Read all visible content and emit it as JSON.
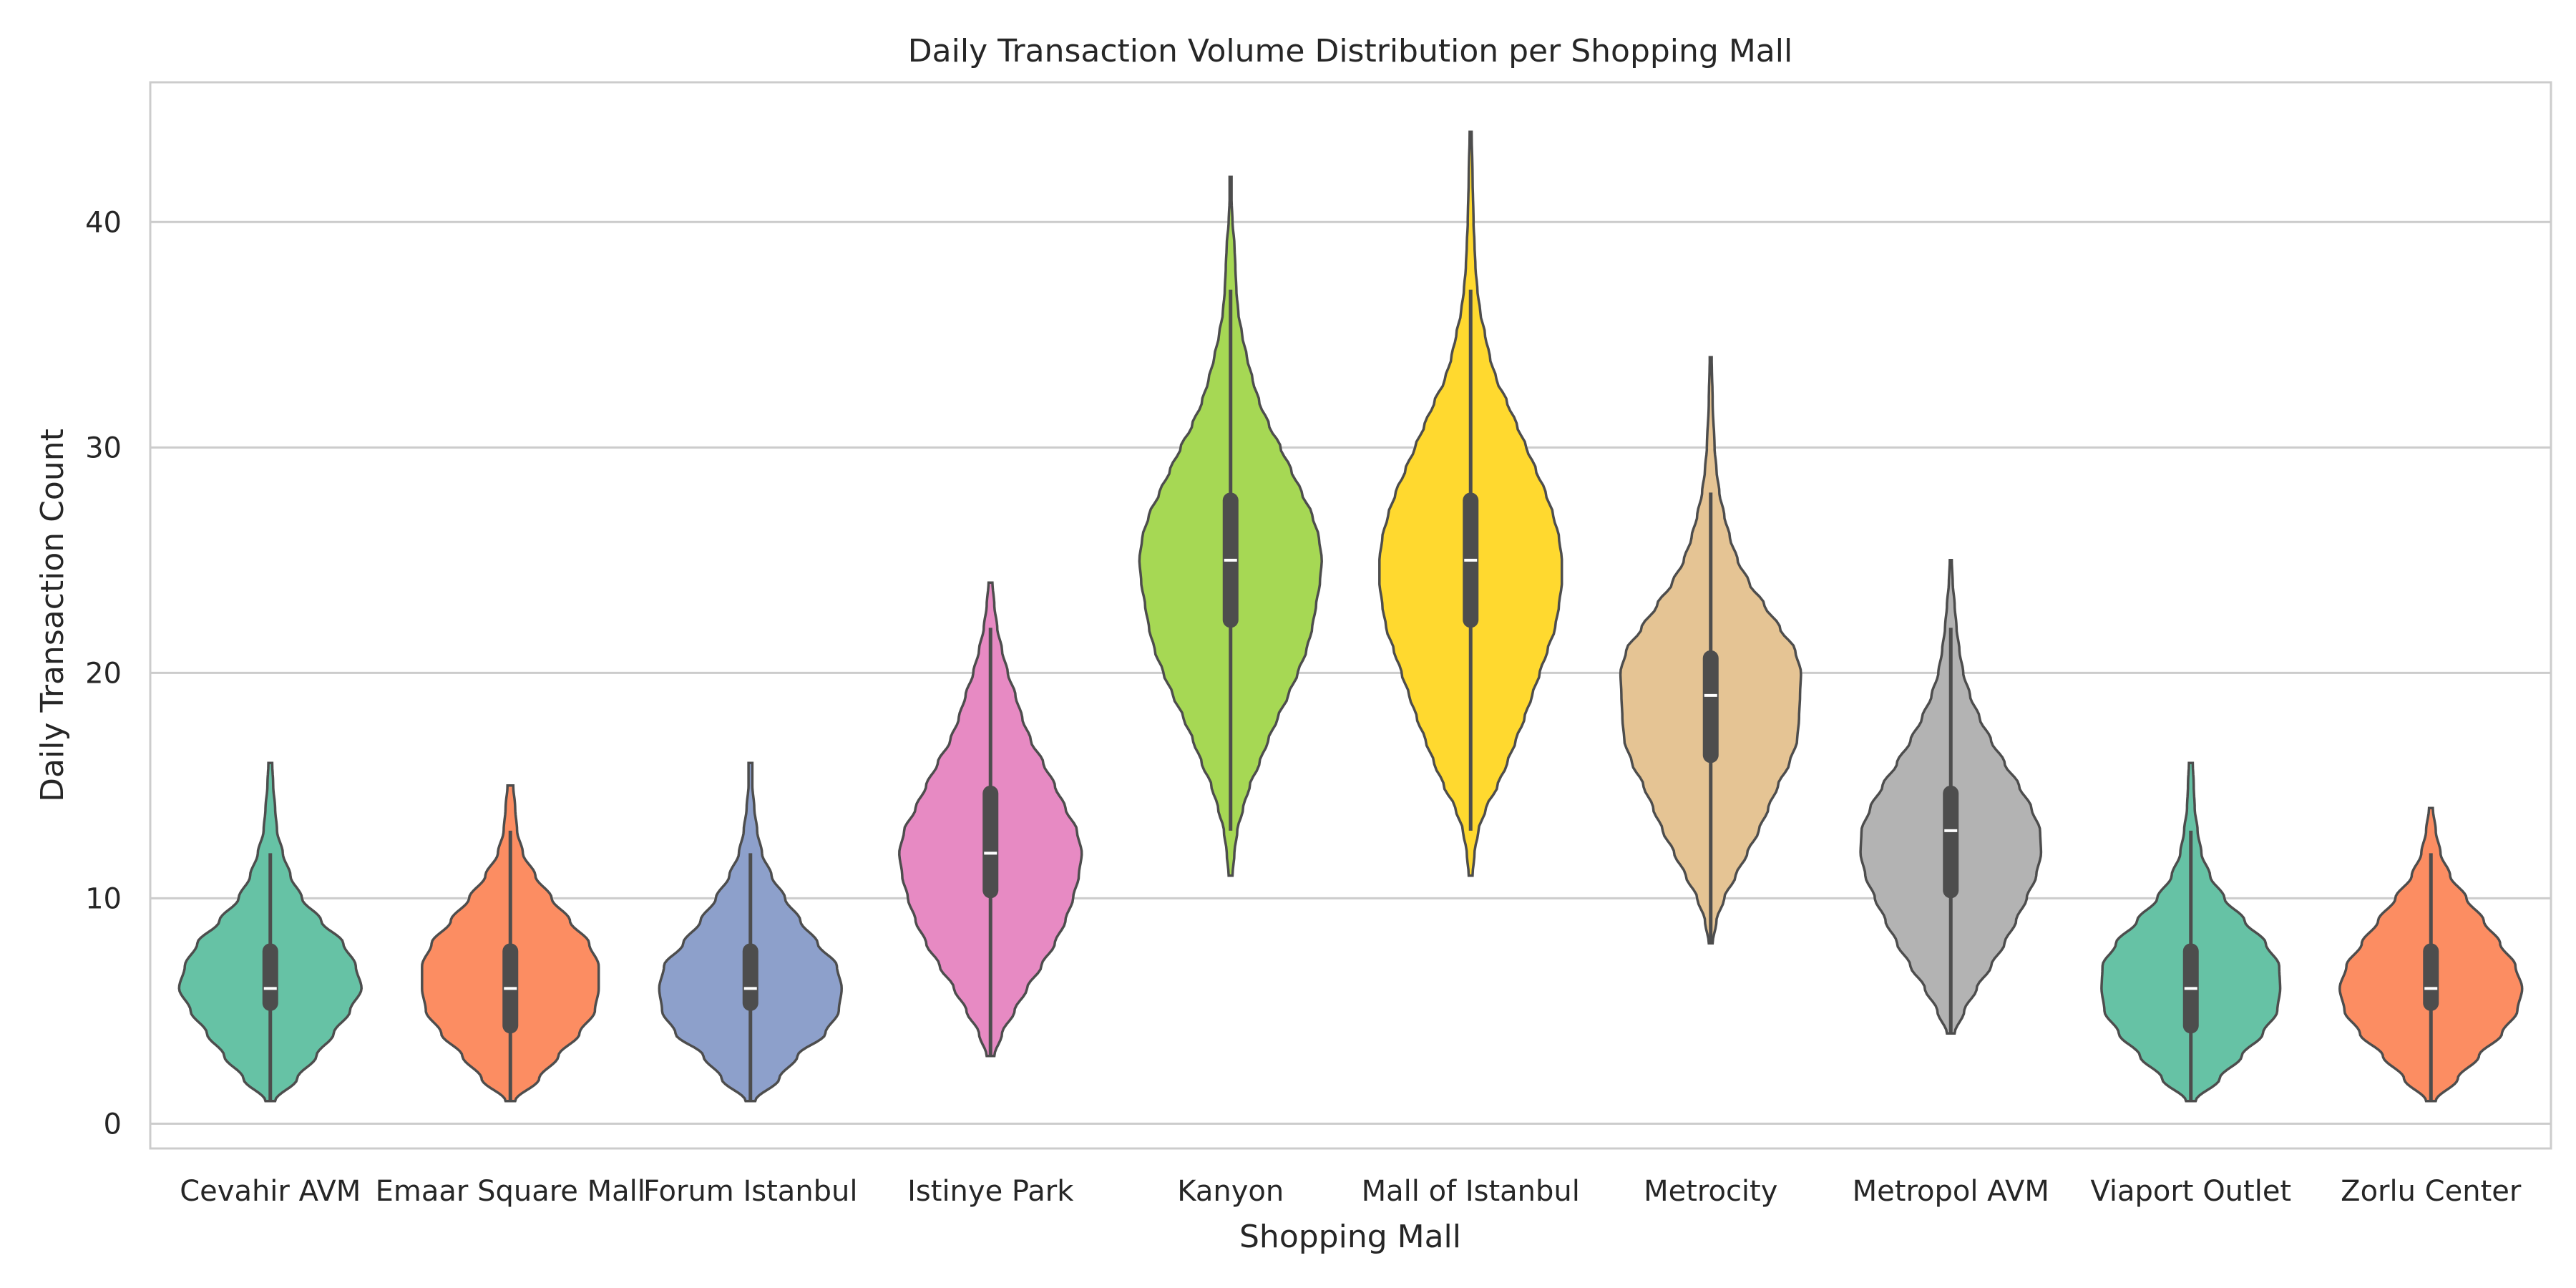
{
  "chart_data": {
    "type": "violin",
    "title": "Daily Transaction Volume Distribution per Shopping Mall",
    "xlabel": "Shopping Mall",
    "ylabel": "Daily Transaction Count",
    "ylim": [
      -1.1,
      46.2
    ],
    "yticks": [
      0,
      10,
      20,
      30,
      40
    ],
    "grid": "horizontal",
    "palette": [
      "#66c2a5",
      "#fc8d62",
      "#8da0cb",
      "#e78ac3",
      "#a6d854",
      "#ffd92f",
      "#e5c494",
      "#b3b3b3"
    ],
    "outline_color": "#4d4d4d",
    "series": [
      {
        "name": "Cevahir AVM",
        "color": "#66c2a5",
        "median": 6,
        "q1": 5,
        "q3": 8,
        "whisker_low": 1,
        "whisker_high": 12,
        "profile": [
          [
            1,
            0.05
          ],
          [
            2,
            0.28
          ],
          [
            3,
            0.48
          ],
          [
            4,
            0.66
          ],
          [
            5,
            0.83
          ],
          [
            6,
            0.95
          ],
          [
            7,
            0.89
          ],
          [
            8,
            0.76
          ],
          [
            9,
            0.53
          ],
          [
            10,
            0.33
          ],
          [
            11,
            0.21
          ],
          [
            12,
            0.13
          ],
          [
            13,
            0.07
          ],
          [
            14,
            0.05
          ],
          [
            15,
            0.03
          ],
          [
            16,
            0.02
          ]
        ]
      },
      {
        "name": "Emaar Square Mall",
        "color": "#fc8d62",
        "median": 6,
        "q1": 4,
        "q3": 8,
        "whisker_low": 1,
        "whisker_high": 13,
        "profile": [
          [
            1,
            0.05
          ],
          [
            2,
            0.3
          ],
          [
            3,
            0.5
          ],
          [
            4,
            0.72
          ],
          [
            5,
            0.88
          ],
          [
            6,
            0.92
          ],
          [
            7,
            0.92
          ],
          [
            8,
            0.82
          ],
          [
            9,
            0.62
          ],
          [
            10,
            0.43
          ],
          [
            11,
            0.26
          ],
          [
            12,
            0.13
          ],
          [
            13,
            0.07
          ],
          [
            14,
            0.05
          ],
          [
            15,
            0.03
          ]
        ]
      },
      {
        "name": "Forum Istanbul",
        "color": "#8da0cb",
        "median": 6,
        "q1": 5,
        "q3": 8,
        "whisker_low": 1,
        "whisker_high": 12,
        "profile": [
          [
            1,
            0.05
          ],
          [
            2,
            0.3
          ],
          [
            3,
            0.49
          ],
          [
            4,
            0.78
          ],
          [
            5,
            0.92
          ],
          [
            6,
            0.95
          ],
          [
            7,
            0.9
          ],
          [
            8,
            0.7
          ],
          [
            9,
            0.52
          ],
          [
            10,
            0.36
          ],
          [
            11,
            0.22
          ],
          [
            12,
            0.12
          ],
          [
            13,
            0.07
          ],
          [
            14,
            0.04
          ],
          [
            15,
            0.02
          ],
          [
            16,
            0.02
          ]
        ]
      },
      {
        "name": "Istinye Park",
        "color": "#e78ac3",
        "median": 12,
        "q1": 10,
        "q3": 15,
        "whisker_low": 3,
        "whisker_high": 22,
        "profile": [
          [
            3,
            0.04
          ],
          [
            4,
            0.12
          ],
          [
            5,
            0.25
          ],
          [
            6,
            0.38
          ],
          [
            7,
            0.53
          ],
          [
            8,
            0.67
          ],
          [
            9,
            0.78
          ],
          [
            10,
            0.86
          ],
          [
            11,
            0.92
          ],
          [
            12,
            0.95
          ],
          [
            13,
            0.9
          ],
          [
            14,
            0.78
          ],
          [
            15,
            0.67
          ],
          [
            16,
            0.55
          ],
          [
            17,
            0.42
          ],
          [
            18,
            0.33
          ],
          [
            19,
            0.26
          ],
          [
            20,
            0.18
          ],
          [
            21,
            0.12
          ],
          [
            22,
            0.07
          ],
          [
            23,
            0.04
          ],
          [
            24,
            0.02
          ]
        ]
      },
      {
        "name": "Kanyon",
        "color": "#a6d854",
        "median": 25,
        "q1": 22,
        "q3": 28,
        "whisker_low": 13,
        "whisker_high": 37,
        "profile": [
          [
            11,
            0.02
          ],
          [
            12,
            0.04
          ],
          [
            13,
            0.07
          ],
          [
            14,
            0.13
          ],
          [
            15,
            0.2
          ],
          [
            16,
            0.3
          ],
          [
            17,
            0.39
          ],
          [
            18,
            0.49
          ],
          [
            19,
            0.6
          ],
          [
            20,
            0.7
          ],
          [
            21,
            0.79
          ],
          [
            22,
            0.85
          ],
          [
            23,
            0.89
          ],
          [
            24,
            0.93
          ],
          [
            25,
            0.95
          ],
          [
            26,
            0.92
          ],
          [
            27,
            0.85
          ],
          [
            28,
            0.74
          ],
          [
            29,
            0.63
          ],
          [
            30,
            0.52
          ],
          [
            31,
            0.4
          ],
          [
            32,
            0.3
          ],
          [
            33,
            0.23
          ],
          [
            34,
            0.17
          ],
          [
            35,
            0.12
          ],
          [
            36,
            0.08
          ],
          [
            37,
            0.06
          ],
          [
            38,
            0.05
          ],
          [
            39,
            0.04
          ],
          [
            40,
            0.02
          ],
          [
            41,
            0.01
          ],
          [
            42,
            0.01
          ]
        ]
      },
      {
        "name": "Mall of Istanbul",
        "color": "#ffd92f",
        "median": 25,
        "q1": 22,
        "q3": 28,
        "whisker_low": 13,
        "whisker_high": 37,
        "profile": [
          [
            11,
            0.02
          ],
          [
            12,
            0.04
          ],
          [
            13,
            0.08
          ],
          [
            14,
            0.16
          ],
          [
            15,
            0.28
          ],
          [
            16,
            0.38
          ],
          [
            17,
            0.47
          ],
          [
            18,
            0.56
          ],
          [
            19,
            0.64
          ],
          [
            20,
            0.72
          ],
          [
            21,
            0.8
          ],
          [
            22,
            0.88
          ],
          [
            23,
            0.92
          ],
          [
            24,
            0.95
          ],
          [
            25,
            0.95
          ],
          [
            26,
            0.92
          ],
          [
            27,
            0.86
          ],
          [
            28,
            0.78
          ],
          [
            29,
            0.68
          ],
          [
            30,
            0.58
          ],
          [
            31,
            0.48
          ],
          [
            32,
            0.38
          ],
          [
            33,
            0.27
          ],
          [
            34,
            0.2
          ],
          [
            35,
            0.15
          ],
          [
            36,
            0.1
          ],
          [
            37,
            0.07
          ],
          [
            38,
            0.05
          ],
          [
            39,
            0.04
          ],
          [
            40,
            0.03
          ],
          [
            42,
            0.02
          ],
          [
            44,
            0.01
          ]
        ]
      },
      {
        "name": "Metrocity",
        "color": "#e5c494",
        "median": 19,
        "q1": 16,
        "q3": 21,
        "whisker_low": 8,
        "whisker_high": 28,
        "profile": [
          [
            8,
            0.02
          ],
          [
            9,
            0.06
          ],
          [
            10,
            0.14
          ],
          [
            11,
            0.26
          ],
          [
            12,
            0.38
          ],
          [
            13,
            0.5
          ],
          [
            14,
            0.6
          ],
          [
            15,
            0.7
          ],
          [
            16,
            0.82
          ],
          [
            17,
            0.9
          ],
          [
            18,
            0.92
          ],
          [
            19,
            0.93
          ],
          [
            20,
            0.94
          ],
          [
            21,
            0.88
          ],
          [
            22,
            0.72
          ],
          [
            23,
            0.56
          ],
          [
            24,
            0.4
          ],
          [
            25,
            0.28
          ],
          [
            26,
            0.2
          ],
          [
            27,
            0.14
          ],
          [
            28,
            0.09
          ],
          [
            29,
            0.06
          ],
          [
            30,
            0.04
          ],
          [
            32,
            0.02
          ],
          [
            34,
            0.01
          ]
        ]
      },
      {
        "name": "Metropol AVM",
        "color": "#b3b3b3",
        "median": 13,
        "q1": 10,
        "q3": 15,
        "whisker_low": 4,
        "whisker_high": 22,
        "profile": [
          [
            4,
            0.04
          ],
          [
            5,
            0.14
          ],
          [
            6,
            0.27
          ],
          [
            7,
            0.42
          ],
          [
            8,
            0.56
          ],
          [
            9,
            0.68
          ],
          [
            10,
            0.79
          ],
          [
            11,
            0.89
          ],
          [
            12,
            0.94
          ],
          [
            13,
            0.93
          ],
          [
            14,
            0.84
          ],
          [
            15,
            0.71
          ],
          [
            16,
            0.56
          ],
          [
            17,
            0.42
          ],
          [
            18,
            0.3
          ],
          [
            19,
            0.2
          ],
          [
            20,
            0.13
          ],
          [
            21,
            0.09
          ],
          [
            22,
            0.06
          ],
          [
            23,
            0.04
          ],
          [
            24,
            0.02
          ],
          [
            25,
            0.01
          ]
        ]
      },
      {
        "name": "Viaport Outlet",
        "color": "#66c2a5",
        "median": 6,
        "q1": 4,
        "q3": 8,
        "whisker_low": 1,
        "whisker_high": 13,
        "profile": [
          [
            1,
            0.05
          ],
          [
            2,
            0.3
          ],
          [
            3,
            0.53
          ],
          [
            4,
            0.75
          ],
          [
            5,
            0.9
          ],
          [
            6,
            0.93
          ],
          [
            7,
            0.92
          ],
          [
            8,
            0.78
          ],
          [
            9,
            0.56
          ],
          [
            10,
            0.35
          ],
          [
            11,
            0.2
          ],
          [
            12,
            0.11
          ],
          [
            13,
            0.07
          ],
          [
            14,
            0.04
          ],
          [
            15,
            0.03
          ],
          [
            16,
            0.02
          ]
        ]
      },
      {
        "name": "Zorlu Center",
        "color": "#fc8d62",
        "median": 6,
        "q1": 5,
        "q3": 8,
        "whisker_low": 1,
        "whisker_high": 12,
        "profile": [
          [
            1,
            0.05
          ],
          [
            2,
            0.28
          ],
          [
            3,
            0.5
          ],
          [
            4,
            0.74
          ],
          [
            5,
            0.9
          ],
          [
            6,
            0.95
          ],
          [
            7,
            0.88
          ],
          [
            8,
            0.72
          ],
          [
            9,
            0.55
          ],
          [
            10,
            0.37
          ],
          [
            11,
            0.2
          ],
          [
            12,
            0.1
          ],
          [
            13,
            0.05
          ],
          [
            14,
            0.02
          ]
        ]
      }
    ]
  }
}
